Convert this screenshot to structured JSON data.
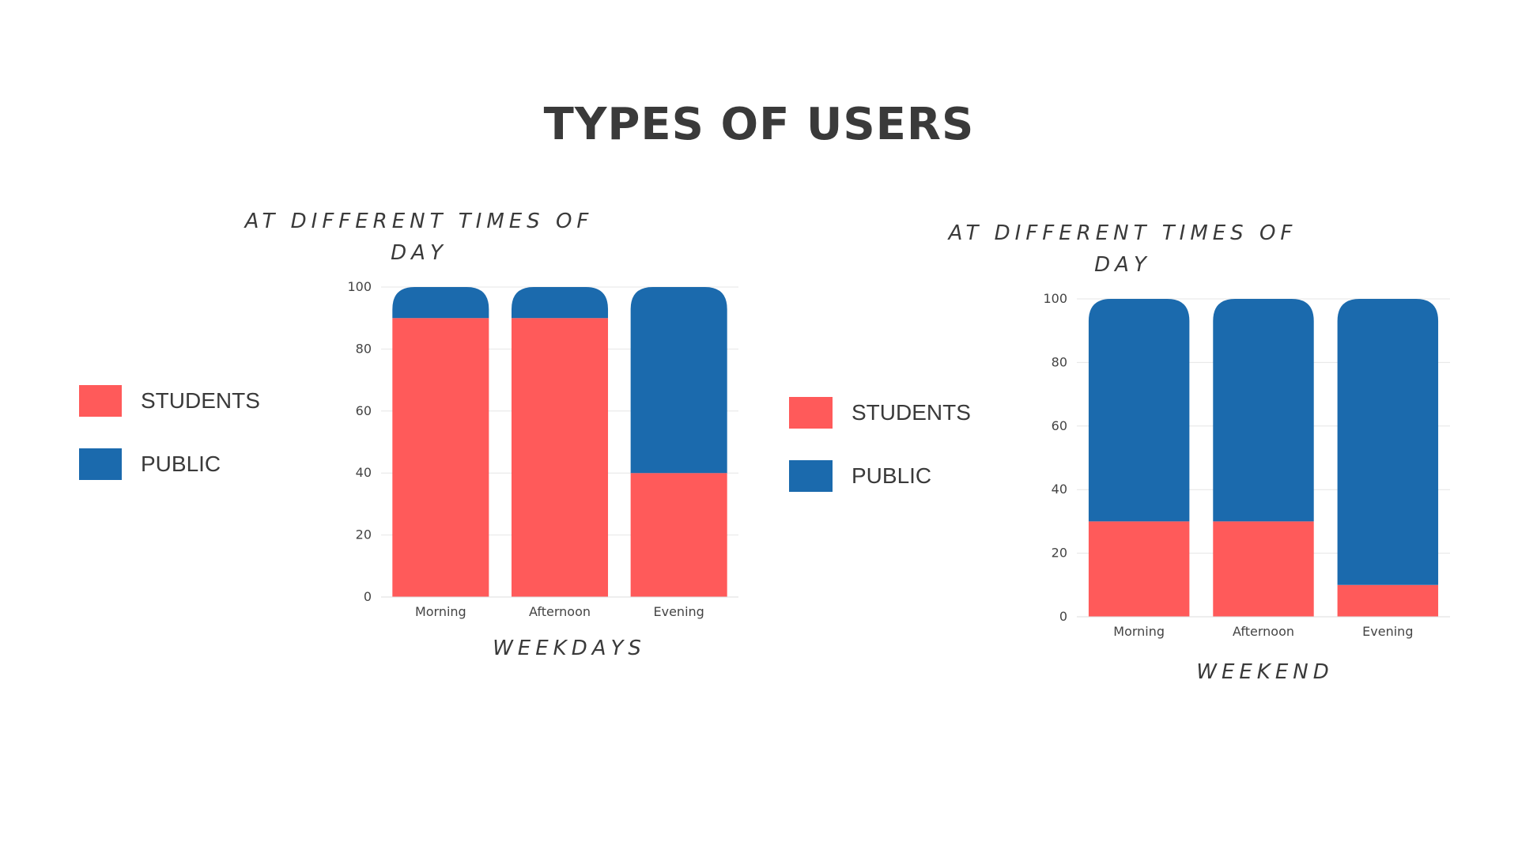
{
  "page": {
    "title": "TYPES OF USERS"
  },
  "colors": {
    "students": "#FF5A5A",
    "public": "#1B6AAD",
    "grid": "#e6e6e6",
    "text": "#3a3a3a"
  },
  "chart_data": [
    {
      "type": "bar",
      "stacked": true,
      "title_lines": [
        "AT DIFFERENT TIMES OF",
        "DAY"
      ],
      "xlabel": "WEEKDAYS",
      "ylabel": "",
      "ylim": [
        0,
        100
      ],
      "yticks": [
        0,
        20,
        40,
        60,
        80,
        100
      ],
      "categories": [
        "Morning",
        "Afternoon",
        "Evening"
      ],
      "series": [
        {
          "name": "STUDENTS",
          "values": [
            90,
            90,
            40
          ]
        },
        {
          "name": "PUBLIC",
          "values": [
            10,
            10,
            60
          ]
        }
      ],
      "legend": [
        "STUDENTS",
        "PUBLIC"
      ],
      "grid": true
    },
    {
      "type": "bar",
      "stacked": true,
      "title_lines": [
        "AT DIFFERENT TIMES OF",
        "DAY"
      ],
      "xlabel": "WEEKEND",
      "ylabel": "",
      "ylim": [
        0,
        100
      ],
      "yticks": [
        0,
        20,
        40,
        60,
        80,
        100
      ],
      "categories": [
        "Morning",
        "Afternoon",
        "Evening"
      ],
      "series": [
        {
          "name": "STUDENTS",
          "values": [
            30,
            30,
            10
          ]
        },
        {
          "name": "PUBLIC",
          "values": [
            70,
            70,
            90
          ]
        }
      ],
      "legend": [
        "STUDENTS",
        "PUBLIC"
      ],
      "grid": true
    }
  ]
}
